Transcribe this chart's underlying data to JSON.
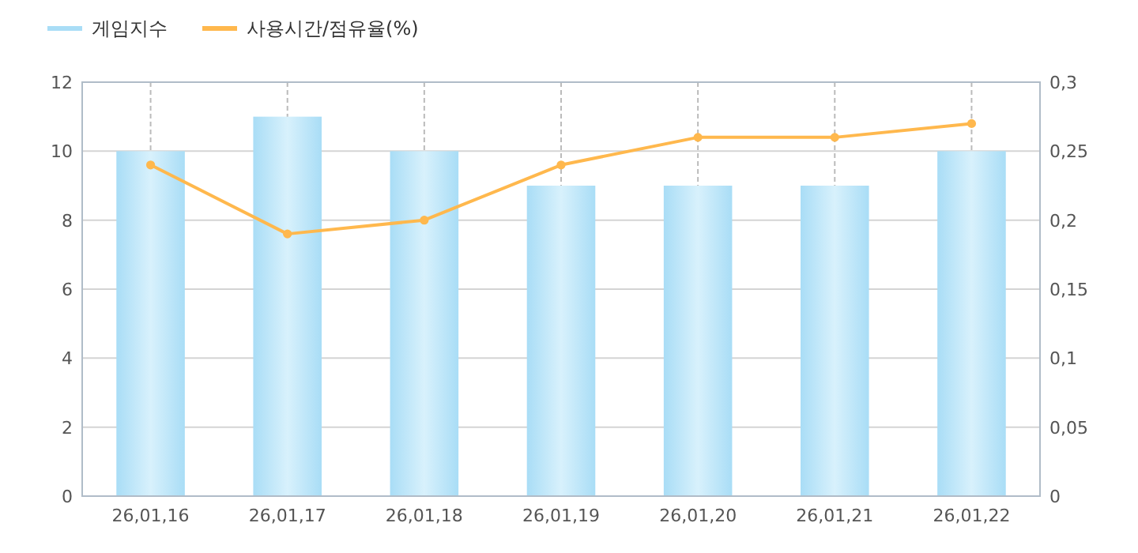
{
  "chart_data": {
    "type": "bar",
    "categories": [
      "26,01,16",
      "26,01,17",
      "26,01,18",
      "26,01,19",
      "26,01,20",
      "26,01,21",
      "26,01,22"
    ],
    "series": [
      {
        "name": "게임지수",
        "color": "#a9ddf6",
        "values": [
          10,
          11,
          10,
          9,
          9,
          9,
          10
        ]
      },
      {
        "name": "사용시간/점유율(%)",
        "type": "line",
        "axis": "y2",
        "color": "#ffb84d",
        "values": [
          0.24,
          0.19,
          0.2,
          0.24,
          0.26,
          0.26,
          0.27
        ]
      }
    ],
    "ylim": [
      0,
      12
    ],
    "yticks": [
      0,
      2,
      4,
      6,
      8,
      10,
      12
    ],
    "y2lim": [
      0,
      0.3
    ],
    "y2ticks": [
      0,
      {
        "value": 0.05,
        "label": "0,05"
      },
      {
        "value": 0.1,
        "label": "0,1"
      },
      {
        "value": 0.15,
        "label": "0,15"
      },
      {
        "value": 0.2,
        "label": "0,2"
      },
      {
        "value": 0.25,
        "label": "0,25"
      },
      {
        "value": 0.3,
        "label": "0,3"
      }
    ],
    "grid": true,
    "legend": "top left",
    "marker": "circle",
    "line_style": "solid"
  }
}
